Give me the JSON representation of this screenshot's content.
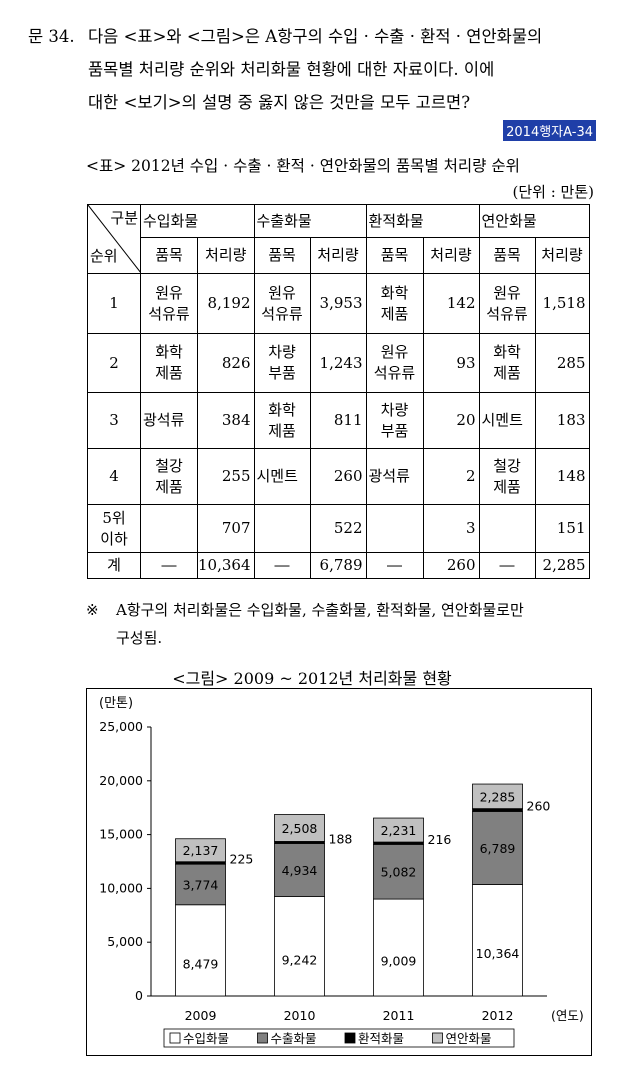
{
  "question": {
    "number": "문 34.",
    "lines": [
      "다음 <표>와 <그림>은 A항구의 수입 · 수출 · 환적 · 연안화물의",
      "품목별 처리량 순위와 처리화물 현황에 대한 자료이다. 이에",
      "대한 <보기>의 설명 중 옳지 않은 것만을 모두 고르면?"
    ],
    "source_tag": "2014행자A-34"
  },
  "table": {
    "caption": "<표> 2012년 수입 · 수출 · 환적 · 연안화물의 품목별 처리량 순위",
    "unit": "(단위 : 만톤)",
    "corner_top": "구분",
    "corner_bottom": "순위",
    "groups": [
      "수입화물",
      "수출화물",
      "환적화물",
      "연안화물"
    ],
    "subheaders": [
      "품목",
      "처리량"
    ],
    "rows": [
      {
        "rank": "1",
        "cells": [
          [
            "원유\n석유류",
            "8,192"
          ],
          [
            "원유\n석유류",
            "3,953"
          ],
          [
            "화학\n제품",
            "142"
          ],
          [
            "원유\n석유류",
            "1,518"
          ]
        ]
      },
      {
        "rank": "2",
        "cells": [
          [
            "화학\n제품",
            "826"
          ],
          [
            "차량\n부품",
            "1,243"
          ],
          [
            "원유\n석유류",
            "93"
          ],
          [
            "화학\n제품",
            "285"
          ]
        ]
      },
      {
        "rank": "3",
        "cells": [
          [
            "광석류",
            "384"
          ],
          [
            "화학\n제품",
            "811"
          ],
          [
            "차량\n부품",
            "20"
          ],
          [
            "시멘트",
            "183"
          ]
        ]
      },
      {
        "rank": "4",
        "cells": [
          [
            "철강\n제품",
            "255"
          ],
          [
            "시멘트",
            "260"
          ],
          [
            "광석류",
            "2"
          ],
          [
            "철강\n제품",
            "148"
          ]
        ]
      },
      {
        "rank": "5위\n이하",
        "cells": [
          [
            "",
            "707"
          ],
          [
            "",
            "522"
          ],
          [
            "",
            "3"
          ],
          [
            "",
            "151"
          ]
        ]
      },
      {
        "rank": "계",
        "cells": [
          [
            "―",
            "10,364"
          ],
          [
            "―",
            "6,789"
          ],
          [
            "―",
            "260"
          ],
          [
            "―",
            "2,285"
          ]
        ]
      }
    ],
    "note_mark": "※",
    "note_lines": [
      "A항구의 처리화물은 수입화물, 수출화물, 환적화물, 연안화물로만",
      "구성됨."
    ]
  },
  "figure": {
    "caption": "<그림> 2009 ~ 2012년 처리화물 현황",
    "chart_data": {
      "type": "bar",
      "stacked": true,
      "ylabel": "(만톤)",
      "xlabel": "(연도)",
      "ylim": [
        0,
        25000
      ],
      "yticks": [
        "0",
        "5,000",
        "10,000",
        "15,000",
        "20,000",
        "25,000"
      ],
      "categories": [
        "2009",
        "2010",
        "2011",
        "2012"
      ],
      "series": [
        {
          "name": "수입화물",
          "values": [
            8479,
            9242,
            9009,
            10364
          ],
          "labels": [
            "8,479",
            "9,242",
            "9,009",
            "10,364"
          ],
          "color": "#ffffff"
        },
        {
          "name": "수출화물",
          "values": [
            3774,
            4934,
            5082,
            6789
          ],
          "labels": [
            "3,774",
            "4,934",
            "5,082",
            "6,789"
          ],
          "color": "#808080"
        },
        {
          "name": "환적화물",
          "values": [
            225,
            188,
            216,
            260
          ],
          "labels": [
            "225",
            "188",
            "216",
            "260"
          ],
          "color": "#000000"
        },
        {
          "name": "연안화물",
          "values": [
            2137,
            2508,
            2231,
            2285
          ],
          "labels": [
            "2,137",
            "2,508",
            "2,231",
            "2,285"
          ],
          "color": "#c0c0c0"
        }
      ],
      "legend_position": "bottom",
      "grid": false
    }
  }
}
